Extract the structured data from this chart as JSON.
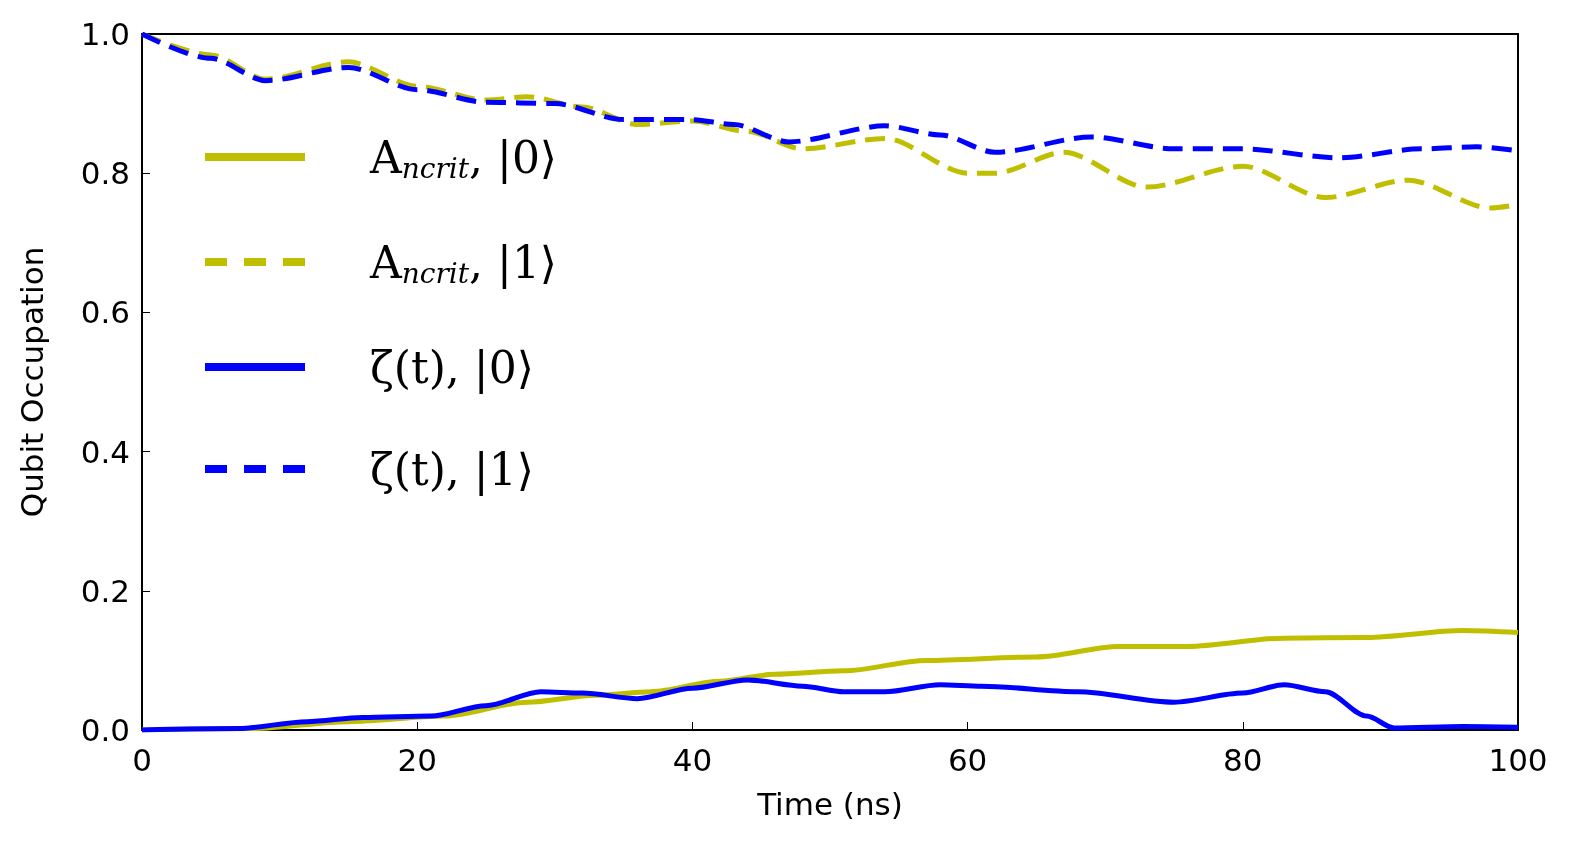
{
  "chart_data": {
    "type": "line",
    "xlabel": "Time (ns)",
    "ylabel": "Qubit Occupation",
    "xlim": [
      0,
      100
    ],
    "xticks": [
      0,
      20,
      40,
      60,
      80,
      100
    ],
    "ylim": [
      0,
      1
    ],
    "yticks": [
      {
        "value": 0,
        "label": "0.0"
      },
      {
        "value": 0.2,
        "label": "0.2"
      },
      {
        "value": 0.4,
        "label": "0.4"
      },
      {
        "value": 0.6,
        "label": "0.6"
      },
      {
        "value": 0.8,
        "label": "0.8"
      },
      {
        "value": 1,
        "label": "1.0"
      }
    ],
    "grid": false,
    "legend": "left",
    "marker": "none",
    "series": [
      {
        "name": "A$_{ncrit}$, |0⟩",
        "color": "#bfbf00",
        "line_style": "solid",
        "x": [
          0,
          8,
          15,
          22,
          28,
          33,
          37,
          42,
          46,
          51,
          57,
          65,
          71,
          76,
          83,
          89,
          96,
          100
        ],
        "values": [
          0,
          0.002,
          0.012,
          0.02,
          0.04,
          0.05,
          0.055,
          0.07,
          0.08,
          0.085,
          0.1,
          0.105,
          0.12,
          0.12,
          0.132,
          0.133,
          0.143,
          0.14
        ]
      },
      {
        "name": "A$_{ncrit}$, |1⟩",
        "color": "#bfbf00",
        "line_style": "dashed",
        "x": [
          0,
          5,
          9,
          15,
          20,
          25,
          28,
          32,
          36,
          40,
          44,
          48,
          54,
          60,
          62,
          67,
          73,
          80,
          86,
          92,
          98,
          100
        ],
        "values": [
          1,
          0.97,
          0.935,
          0.96,
          0.925,
          0.905,
          0.91,
          0.895,
          0.87,
          0.875,
          0.86,
          0.835,
          0.85,
          0.8,
          0.8,
          0.83,
          0.78,
          0.81,
          0.765,
          0.79,
          0.75,
          0.755
        ]
      },
      {
        "name": "ζ(t), |0⟩",
        "color": "#0000ff",
        "line_style": "solid",
        "x": [
          0,
          7,
          12,
          16,
          21,
          25,
          29,
          32,
          36,
          40,
          44,
          48,
          51,
          54,
          58,
          61,
          68,
          75,
          80,
          83,
          86,
          89,
          91,
          96,
          100
        ],
        "values": [
          0,
          0.002,
          0.012,
          0.018,
          0.02,
          0.035,
          0.055,
          0.053,
          0.045,
          0.06,
          0.072,
          0.063,
          0.055,
          0.055,
          0.065,
          0.063,
          0.055,
          0.04,
          0.053,
          0.065,
          0.055,
          0.02,
          0.003,
          0.005,
          0.004
        ]
      },
      {
        "name": "ζ(t), |1⟩",
        "color": "#0000ff",
        "line_style": "dashed",
        "x": [
          0,
          5,
          9,
          15,
          20,
          25,
          30,
          35,
          40,
          43,
          47,
          54,
          58,
          62,
          69,
          75,
          80,
          87,
          93,
          97,
          100
        ],
        "values": [
          1,
          0.965,
          0.933,
          0.952,
          0.92,
          0.902,
          0.9,
          0.877,
          0.877,
          0.87,
          0.845,
          0.868,
          0.855,
          0.83,
          0.852,
          0.835,
          0.835,
          0.822,
          0.835,
          0.838,
          0.832
        ]
      }
    ]
  }
}
